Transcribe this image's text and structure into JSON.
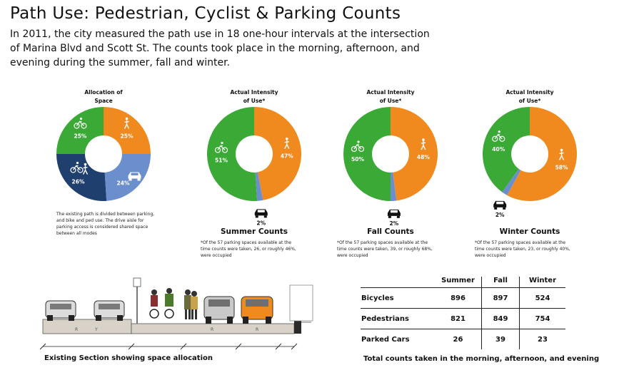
{
  "header": {
    "title": "Path Use: Pedestrian, Cyclist & Parking Counts",
    "intro_line1": "In 2011, the city measured the path use in 18 one-hour intervals at the intersection",
    "intro_line2": "of Marina Blvd and Scott St. The counts took place in the morning, afternoon, and",
    "intro_line3": "evening during the summer, fall and winter."
  },
  "colors": {
    "green": "#3aa935",
    "orange": "#f08a1e",
    "light_blue": "#6b8fcd",
    "navy": "#1f3f6e",
    "road": "#d8d2c8"
  },
  "icons": {
    "bike": "bicycle-icon",
    "ped": "pedestrian-icon",
    "car": "car-icon"
  },
  "chart_data": [
    {
      "type": "pie",
      "title": "Allocation of Space",
      "title_line1": "Allocation of",
      "title_line2": "Space",
      "slices": [
        {
          "name": "pedestrians",
          "value": 25,
          "label": "25%"
        },
        {
          "name": "parking",
          "value": 24,
          "label": "24%"
        },
        {
          "name": "shared",
          "value": 26,
          "label": "26%"
        },
        {
          "name": "bicycles",
          "value": 25,
          "label": "25%"
        }
      ],
      "note_line1": "The existing path is divided between parking,",
      "note_line2": "and bike and ped use. The drive aisle for",
      "note_line3": "parking access is considered shared space",
      "note_line4": "between all modes"
    },
    {
      "type": "pie",
      "title": "Actual Intensity of Use* — Summer Counts",
      "title_line1": "Actual Intensity",
      "title_line2": "of Use*",
      "caption": "Summer Counts",
      "slices": [
        {
          "name": "pedestrians",
          "value": 47,
          "label": "47%"
        },
        {
          "name": "parking",
          "value": 2,
          "label": "2%"
        },
        {
          "name": "bicycles",
          "value": 51,
          "label": "51%"
        }
      ],
      "note_line1": "*Of the 57 parking spaces available at the",
      "note_line2": "time counts were taken,  26, or roughly 46%,",
      "note_line3": "were occupied"
    },
    {
      "type": "pie",
      "title": "Actual Intensity of Use* — Fall Counts",
      "title_line1": "Actual Intensity",
      "title_line2": "of Use*",
      "caption": "Fall Counts",
      "slices": [
        {
          "name": "pedestrians",
          "value": 48,
          "label": "48%"
        },
        {
          "name": "parking",
          "value": 2,
          "label": "2%"
        },
        {
          "name": "bicycles",
          "value": 50,
          "label": "50%"
        }
      ],
      "note_line1": "*Of the 57 parking spaces available at the",
      "note_line2": "time counts were taken,  39, or roughly 68%,",
      "note_line3": "were occupied"
    },
    {
      "type": "pie",
      "title": "Actual Intensity of Use* — Winter Counts",
      "title_line1": "Actual Intensity",
      "title_line2": "of Use*",
      "caption": "Winter Counts",
      "slices": [
        {
          "name": "pedestrians",
          "value": 58,
          "label": "58%"
        },
        {
          "name": "parking",
          "value": 2,
          "label": "2%"
        },
        {
          "name": "bicycles",
          "value": 40,
          "label": "40%"
        }
      ],
      "note_line1": "*Of the 57 parking spaces available at the",
      "note_line2": "time counts were taken,  23, or roughly 40%,",
      "note_line3": "were occupied"
    },
    {
      "type": "table",
      "columns": [
        "Summer",
        "Fall",
        "Winter"
      ],
      "rows": [
        {
          "label": "Bicycles",
          "values": [
            "896",
            "897",
            "524"
          ]
        },
        {
          "label": "Pedestrians",
          "values": [
            "821",
            "849",
            "754"
          ]
        },
        {
          "label": "Parked Cars",
          "values": [
            "26",
            "39",
            "23"
          ]
        }
      ],
      "caption": "Total counts taken in the morning, afternoon, and evening"
    }
  ],
  "section": {
    "caption": "Existing Section showing space allocation",
    "labels": [
      "R",
      "Y",
      "R",
      "R"
    ]
  }
}
